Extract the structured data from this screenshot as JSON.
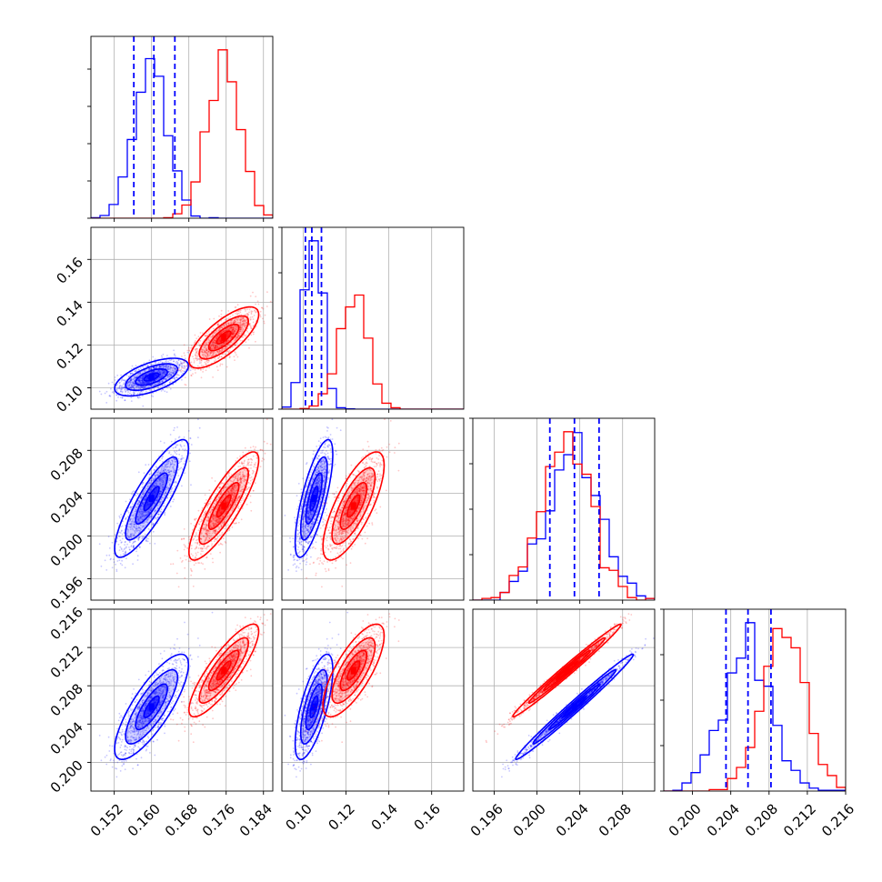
{
  "chart_data": {
    "type": "corner",
    "title": "",
    "grid": true,
    "legend": "none",
    "colors": {
      "blue": "#0000ff",
      "red": "#ff0000"
    },
    "parameters": [
      {
        "index": 0,
        "range": [
          0.147,
          0.186
        ],
        "ticks": [
          0.152,
          0.16,
          0.168,
          0.176,
          0.184
        ],
        "tick_labels": [
          "0.152",
          "0.160",
          "0.168",
          "0.176",
          "0.184"
        ]
      },
      {
        "index": 1,
        "range": [
          0.09,
          0.175
        ],
        "ticks": [
          0.1,
          0.12,
          0.14,
          0.16
        ],
        "tick_labels": [
          "0.10",
          "0.12",
          "0.14",
          "0.16"
        ]
      },
      {
        "index": 2,
        "range": [
          0.194,
          0.211
        ],
        "ticks": [
          0.196,
          0.2,
          0.204,
          0.208
        ],
        "tick_labels": [
          "0.196",
          "0.200",
          "0.204",
          "0.208"
        ]
      },
      {
        "index": 3,
        "range": [
          0.197,
          0.216
        ],
        "ticks": [
          0.2,
          0.204,
          0.208,
          0.212,
          0.216
        ],
        "tick_labels": [
          "0.200",
          "0.204",
          "0.208",
          "0.212",
          "0.216"
        ]
      }
    ],
    "series": [
      {
        "name": "",
        "color": "#0000ff",
        "mean": [
          0.16,
          0.105,
          0.2035,
          0.2058
        ],
        "std": [
          0.0036,
          0.004,
          0.0025,
          0.0025
        ],
        "correlation": [
          [
            1,
            0.6,
            0.85,
            0.8
          ],
          [
            0.6,
            1,
            0.75,
            0.7
          ],
          [
            0.85,
            0.75,
            1,
            0.99
          ],
          [
            0.8,
            0.7,
            0.99,
            1
          ]
        ],
        "quantile_lines": [
          [
            0.1562,
            0.1605,
            0.165
          ],
          [
            0.101,
            0.104,
            0.1085
          ],
          [
            0.2012,
            0.2035,
            0.2058
          ],
          [
            0.2035,
            0.2058,
            0.2082
          ]
        ]
      },
      {
        "name": "",
        "color": "#ff0000",
        "mean": [
          0.1755,
          0.1235,
          0.2028,
          0.2096
        ],
        "std": [
          0.0034,
          0.0065,
          0.0023,
          0.0022
        ],
        "correlation": [
          [
            1,
            0.75,
            0.85,
            0.85
          ],
          [
            0.75,
            1,
            0.75,
            0.75
          ],
          [
            0.85,
            0.75,
            1,
            0.99
          ],
          [
            0.85,
            0.75,
            0.99,
            1
          ]
        ],
        "quantile_lines": []
      }
    ]
  }
}
